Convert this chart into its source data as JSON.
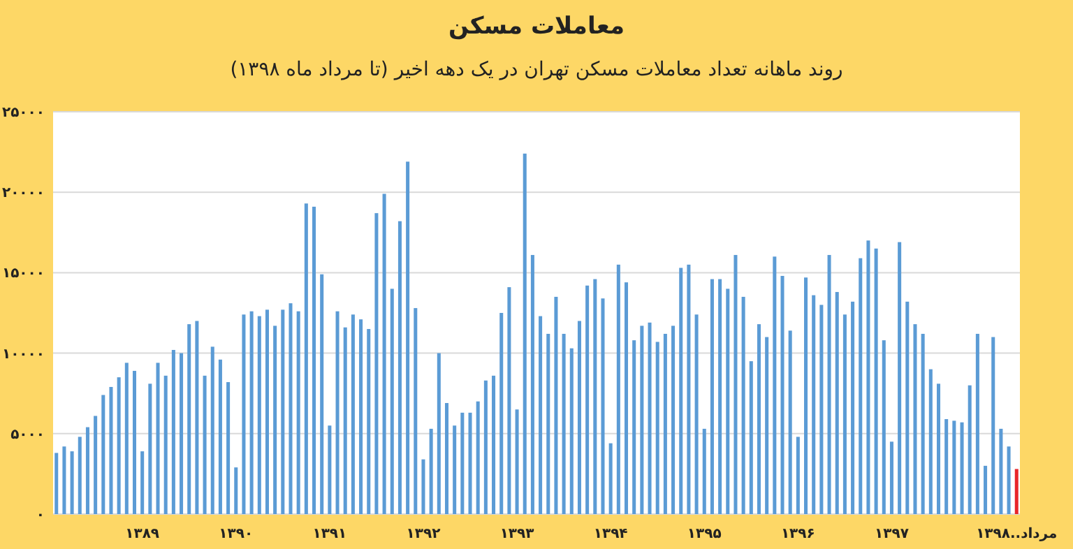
{
  "chart_data": {
    "type": "bar",
    "title": "معاملات مسکن",
    "subtitle": "روند ماهانه تعداد معاملات مسکن تهران در یک دهه اخیر (تا مرداد ماه ۱۳۹۸)",
    "categories": [
      null,
      null,
      null,
      null,
      null,
      null,
      null,
      null,
      null,
      null,
      null,
      "۱۳۸۹",
      null,
      null,
      null,
      null,
      null,
      null,
      null,
      null,
      null,
      null,
      null,
      "۱۳۹۰",
      null,
      null,
      null,
      null,
      null,
      null,
      null,
      null,
      null,
      null,
      null,
      "۱۳۹۱",
      null,
      null,
      null,
      null,
      null,
      null,
      null,
      null,
      null,
      null,
      null,
      "۱۳۹۲",
      null,
      null,
      null,
      null,
      null,
      null,
      null,
      null,
      null,
      null,
      null,
      "۱۳۹۳",
      null,
      null,
      null,
      null,
      null,
      null,
      null,
      null,
      null,
      null,
      null,
      "۱۳۹۴",
      null,
      null,
      null,
      null,
      null,
      null,
      null,
      null,
      null,
      null,
      null,
      "۱۳۹۵",
      null,
      null,
      null,
      null,
      null,
      null,
      null,
      null,
      null,
      null,
      null,
      "۱۳۹۶",
      null,
      null,
      null,
      null,
      null,
      null,
      null,
      null,
      null,
      null,
      null,
      "۱۳۹۷",
      null,
      null,
      null,
      null,
      null,
      null,
      null,
      null,
      null,
      null,
      null,
      null,
      null,
      null,
      null,
      "مرداد..۱۳۹۸"
    ],
    "values": [
      3800,
      4200,
      3900,
      4800,
      5400,
      6100,
      7400,
      7900,
      8500,
      9400,
      8900,
      3900,
      8100,
      9400,
      8600,
      10200,
      10000,
      11800,
      12000,
      8600,
      10400,
      9600,
      8200,
      2900,
      12400,
      12600,
      12300,
      12700,
      11700,
      12700,
      13100,
      12600,
      19300,
      19100,
      14900,
      5500,
      12600,
      11600,
      12400,
      12100,
      11500,
      18700,
      19900,
      14000,
      18200,
      21900,
      12800,
      3400,
      5300,
      10000,
      6900,
      5500,
      6300,
      6300,
      7000,
      8300,
      8600,
      12500,
      14100,
      6500,
      22400,
      16100,
      12300,
      11200,
      13500,
      11200,
      10300,
      12000,
      14200,
      14600,
      13400,
      4400,
      15500,
      14400,
      10800,
      11700,
      11900,
      10700,
      11200,
      11700,
      15300,
      15500,
      12400,
      5300,
      14600,
      14600,
      14000,
      16100,
      13500,
      9500,
      11800,
      11000,
      16000,
      14800,
      11400,
      4800,
      14700,
      13600,
      13000,
      16100,
      13800,
      12400,
      13200,
      15900,
      17000,
      16500,
      10800,
      4500,
      16900,
      13200,
      11800,
      11200,
      9000,
      8100,
      5900,
      5800,
      5700,
      8000,
      11200,
      3000,
      11000,
      5300,
      4200,
      2800
    ],
    "colors": [
      "#5b9bd5",
      "#5b9bd5",
      "#5b9bd5",
      "#5b9bd5",
      "#5b9bd5",
      "#5b9bd5",
      "#5b9bd5",
      "#5b9bd5",
      "#5b9bd5",
      "#5b9bd5",
      "#5b9bd5",
      "#5b9bd5",
      "#5b9bd5",
      "#5b9bd5",
      "#5b9bd5",
      "#5b9bd5",
      "#5b9bd5",
      "#5b9bd5",
      "#5b9bd5",
      "#5b9bd5",
      "#5b9bd5",
      "#5b9bd5",
      "#5b9bd5",
      "#5b9bd5",
      "#5b9bd5",
      "#5b9bd5",
      "#5b9bd5",
      "#5b9bd5",
      "#5b9bd5",
      "#5b9bd5",
      "#5b9bd5",
      "#5b9bd5",
      "#5b9bd5",
      "#5b9bd5",
      "#5b9bd5",
      "#5b9bd5",
      "#5b9bd5",
      "#5b9bd5",
      "#5b9bd5",
      "#5b9bd5",
      "#5b9bd5",
      "#5b9bd5",
      "#5b9bd5",
      "#5b9bd5",
      "#5b9bd5",
      "#5b9bd5",
      "#5b9bd5",
      "#5b9bd5",
      "#5b9bd5",
      "#5b9bd5",
      "#5b9bd5",
      "#5b9bd5",
      "#5b9bd5",
      "#5b9bd5",
      "#5b9bd5",
      "#5b9bd5",
      "#5b9bd5",
      "#5b9bd5",
      "#5b9bd5",
      "#5b9bd5",
      "#5b9bd5",
      "#5b9bd5",
      "#5b9bd5",
      "#5b9bd5",
      "#5b9bd5",
      "#5b9bd5",
      "#5b9bd5",
      "#5b9bd5",
      "#5b9bd5",
      "#5b9bd5",
      "#5b9bd5",
      "#5b9bd5",
      "#5b9bd5",
      "#5b9bd5",
      "#5b9bd5",
      "#5b9bd5",
      "#5b9bd5",
      "#5b9bd5",
      "#5b9bd5",
      "#5b9bd5",
      "#5b9bd5",
      "#5b9bd5",
      "#5b9bd5",
      "#5b9bd5",
      "#5b9bd5",
      "#5b9bd5",
      "#5b9bd5",
      "#5b9bd5",
      "#5b9bd5",
      "#5b9bd5",
      "#5b9bd5",
      "#5b9bd5",
      "#5b9bd5",
      "#5b9bd5",
      "#5b9bd5",
      "#5b9bd5",
      "#5b9bd5",
      "#5b9bd5",
      "#5b9bd5",
      "#5b9bd5",
      "#5b9bd5",
      "#5b9bd5",
      "#5b9bd5",
      "#5b9bd5",
      "#5b9bd5",
      "#5b9bd5",
      "#5b9bd5",
      "#5b9bd5",
      "#5b9bd5",
      "#5b9bd5",
      "#5b9bd5",
      "#5b9bd5",
      "#5b9bd5",
      "#5b9bd5",
      "#5b9bd5",
      "#5b9bd5",
      "#5b9bd5",
      "#5b9bd5",
      "#5b9bd5",
      "#5b9bd5",
      "#5b9bd5",
      "#5b9bd5",
      "#5b9bd5",
      "#e8262a"
    ],
    "ylim": [
      0,
      25000
    ],
    "yticks": [
      {
        "value": 0,
        "label": "۰"
      },
      {
        "value": 5000,
        "label": "۵۰۰۰"
      },
      {
        "value": 10000,
        "label": "۱۰۰۰۰"
      },
      {
        "value": 15000,
        "label": "۱۵۰۰۰"
      },
      {
        "value": 20000,
        "label": "۲۰۰۰۰"
      },
      {
        "value": 25000,
        "label": "۲۵۰۰۰"
      }
    ],
    "grid": "y"
  }
}
